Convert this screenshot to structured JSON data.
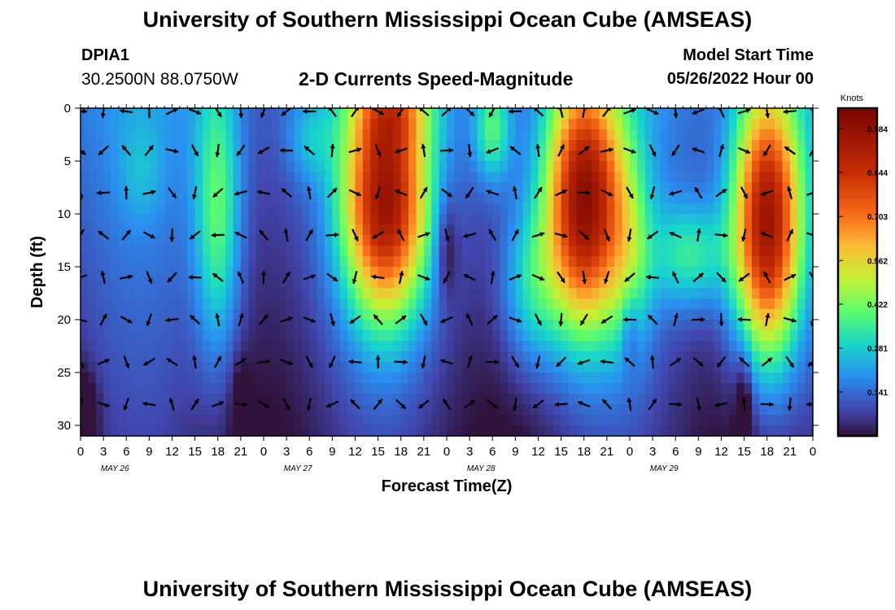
{
  "header": {
    "title": "University of Southern Mississippi Ocean Cube (AMSEAS)",
    "station": "DPIA1",
    "coordinates": "30.2500N  88.0750W",
    "subtitle": "2-D Currents Speed-Magnitude",
    "model_start_label": "Model Start Time",
    "model_start_value": "05/26/2022 Hour 00"
  },
  "footer_title": "University of Southern Mississippi Ocean Cube (AMSEAS)",
  "chart_data": {
    "type": "heatmap",
    "title": "2-D Currents Speed-Magnitude",
    "xlabel": "Forecast Time(Z)",
    "ylabel": "Depth (ft)",
    "x_ticks": [
      "0",
      "3",
      "6",
      "9",
      "12",
      "15",
      "18",
      "21",
      "0",
      "3",
      "6",
      "9",
      "12",
      "15",
      "18",
      "21",
      "0",
      "3",
      "6",
      "9",
      "12",
      "15",
      "18",
      "21",
      "0",
      "3",
      "6",
      "9",
      "12",
      "15",
      "18",
      "21",
      "0"
    ],
    "date_labels": [
      {
        "label": "MAY 26",
        "hour": 4.5
      },
      {
        "label": "MAY 27",
        "hour": 28.5
      },
      {
        "label": "MAY 28",
        "hour": 52.5
      },
      {
        "label": "MAY 29",
        "hour": 76.5
      }
    ],
    "xlim": [
      0,
      96
    ],
    "y_ticks": [
      0,
      5,
      10,
      15,
      20,
      25,
      30
    ],
    "ylim": [
      0,
      31
    ],
    "colorbar": {
      "label": "Knots",
      "ticks": [
        "0.984",
        "0.844",
        "0.703",
        "0.562",
        "0.422",
        "0.281",
        "0.141"
      ],
      "range": [
        0,
        1.05
      ]
    },
    "speed_peaks_knots": [
      {
        "hour": 0,
        "depth_ft": 29,
        "speed": 0.02
      },
      {
        "hour": 18,
        "depth_ft": 8,
        "speed": 0.5
      },
      {
        "hour": 40,
        "depth_ft": 4,
        "speed": 0.95
      },
      {
        "hour": 42,
        "depth_ft": 12,
        "speed": 0.9
      },
      {
        "hour": 54,
        "depth_ft": 2,
        "speed": 0.42
      },
      {
        "hour": 66,
        "depth_ft": 4,
        "speed": 1.0
      },
      {
        "hour": 67,
        "depth_ft": 16,
        "speed": 0.9
      },
      {
        "hour": 90,
        "depth_ft": 5,
        "speed": 1.0
      },
      {
        "hour": 90,
        "depth_ft": 18,
        "speed": 0.9
      }
    ],
    "vector_depths_ft": [
      0,
      4,
      8,
      12,
      16,
      20,
      24,
      28
    ],
    "vector_interval_hours": 3
  }
}
